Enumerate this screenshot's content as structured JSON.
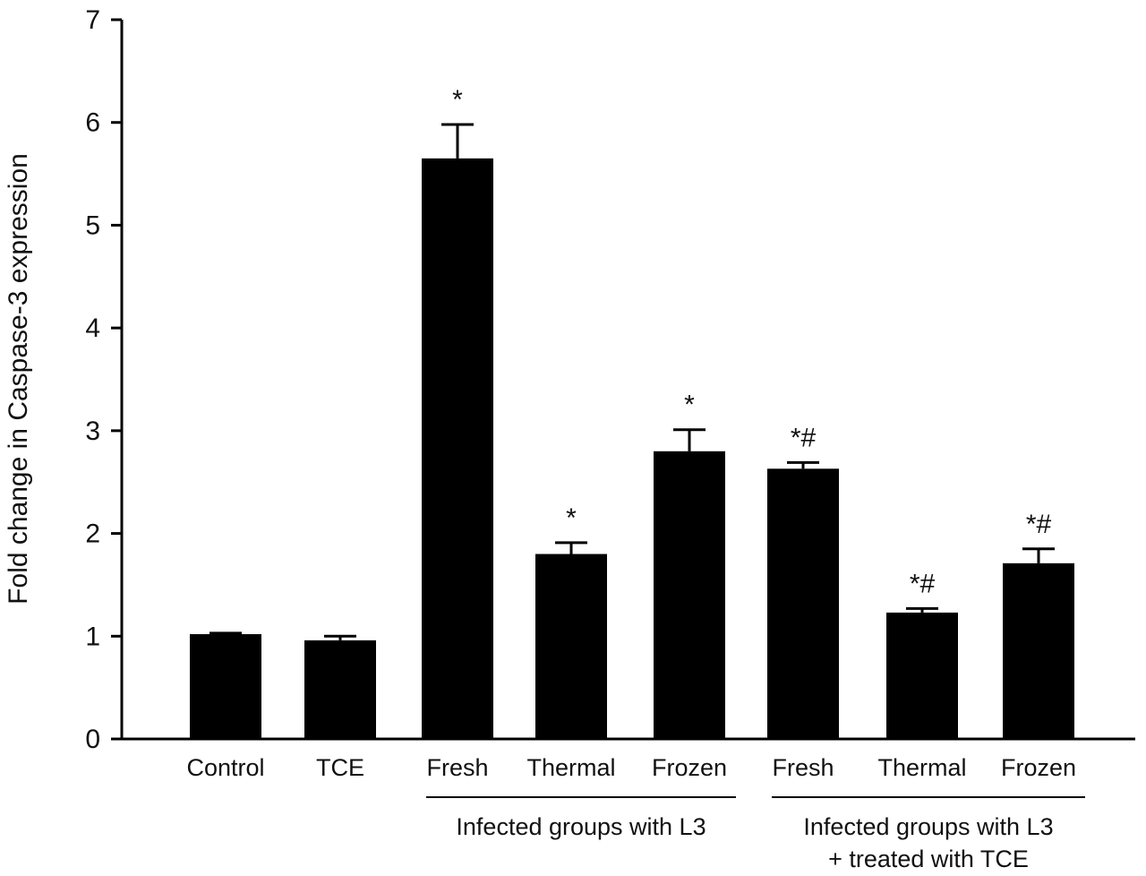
{
  "chart_data": {
    "type": "bar",
    "title": "",
    "xlabel": "",
    "ylabel": "Fold change in Caspase-3 expression",
    "ylim": [
      0,
      7
    ],
    "yticks": [
      "0",
      "1",
      "2",
      "3",
      "4",
      "5",
      "6",
      "7"
    ],
    "grid": false,
    "categories": [
      "Control",
      "TCE",
      "Fresh",
      "Thermal",
      "Frozen",
      "Fresh",
      "Thermal",
      "Frozen"
    ],
    "values": [
      1.02,
      0.96,
      5.65,
      1.8,
      2.8,
      2.63,
      1.23,
      1.71
    ],
    "errors": [
      0.01,
      0.04,
      0.33,
      0.11,
      0.21,
      0.06,
      0.04,
      0.14
    ],
    "annotations": [
      "",
      "",
      "*",
      "*",
      "*",
      "*#",
      "*#",
      "*#"
    ],
    "bar_color": "#000000",
    "groups": [
      {
        "label_lines": [
          "Infected groups with L3"
        ],
        "categories_from": 2,
        "categories_to": 4
      },
      {
        "label_lines": [
          "Infected groups with L3",
          "+ treated with TCE"
        ],
        "categories_from": 5,
        "categories_to": 7
      }
    ]
  }
}
